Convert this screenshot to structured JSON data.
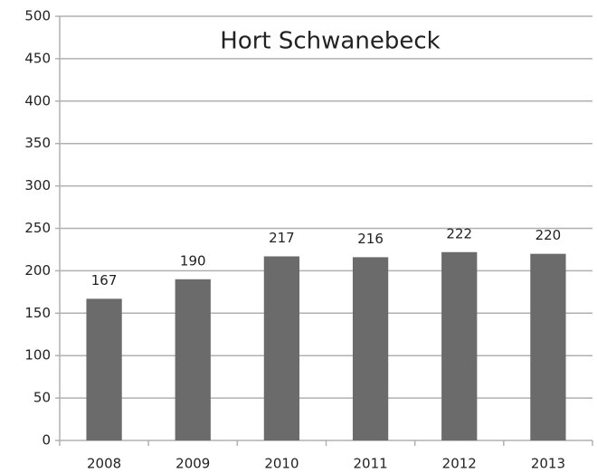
{
  "chart_data": {
    "type": "bar",
    "title": "Hort Schwanebeck",
    "categories": [
      "2008",
      "2009",
      "2010",
      "2011",
      "2012",
      "2013"
    ],
    "values": [
      167,
      190,
      217,
      216,
      222,
      220
    ],
    "color": "#6b6b6b",
    "ylim": [
      0,
      500
    ],
    "yticks": [
      0,
      50,
      100,
      150,
      200,
      250,
      300,
      350,
      400,
      450,
      500
    ],
    "grid": true
  }
}
